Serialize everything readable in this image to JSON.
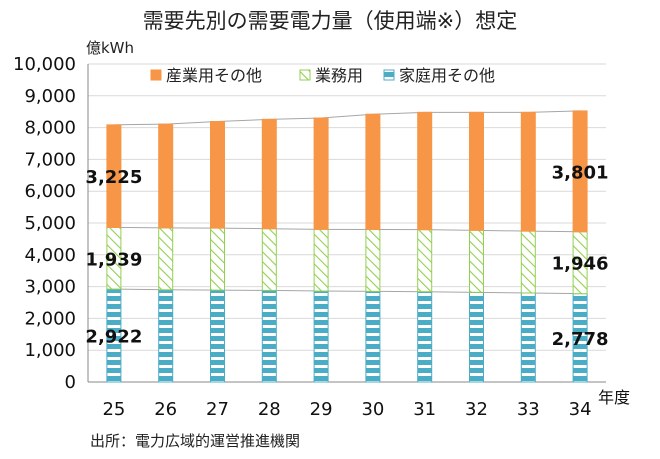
{
  "chart_data": {
    "type": "bar",
    "stacked": true,
    "title": "需要先別の需要電力量（使用端※）想定",
    "ylabel": "億kWh",
    "xlabel": "年度",
    "ylim": [
      0,
      10000
    ],
    "yticks": [
      "0",
      "1,000",
      "2,000",
      "3,000",
      "4,000",
      "5,000",
      "6,000",
      "7,000",
      "8,000",
      "9,000",
      "10,000"
    ],
    "categories": [
      "25",
      "26",
      "27",
      "28",
      "29",
      "30",
      "31",
      "32",
      "33",
      "34"
    ],
    "series": [
      {
        "name": "家庭用その他",
        "color": "#4BACC6",
        "pattern": "bricks",
        "values": [
          2922,
          2900,
          2890,
          2880,
          2860,
          2850,
          2840,
          2820,
          2800,
          2778
        ]
      },
      {
        "name": "業務用",
        "color": "#92D050",
        "pattern": "diagonal",
        "values": [
          1939,
          1945,
          1950,
          1940,
          1940,
          1945,
          1950,
          1950,
          1945,
          1946
        ]
      },
      {
        "name": "産業用その他",
        "color": "#F79646",
        "pattern": "solid",
        "values": [
          3225,
          3265,
          3350,
          3440,
          3500,
          3625,
          3690,
          3710,
          3735,
          3801
        ]
      }
    ],
    "data_labels": [
      {
        "series": 2,
        "index": 0,
        "text": "3,225"
      },
      {
        "series": 1,
        "index": 0,
        "text": "1,939"
      },
      {
        "series": 0,
        "index": 0,
        "text": "2,922"
      },
      {
        "series": 2,
        "index": 9,
        "text": "3,801"
      },
      {
        "series": 1,
        "index": 9,
        "text": "1,946"
      },
      {
        "series": 0,
        "index": 9,
        "text": "2,778"
      }
    ],
    "legend": {
      "placement": "top",
      "order": [
        2,
        1,
        0
      ]
    },
    "grid": true
  },
  "source": "出所：電力広域的運営推進機関"
}
